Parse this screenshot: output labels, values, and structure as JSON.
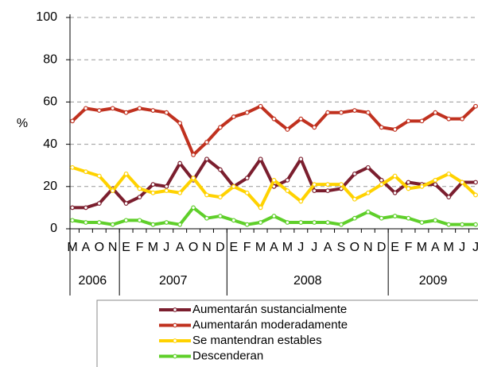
{
  "chart_data": {
    "type": "line",
    "y_label": "%",
    "categories": [
      "M",
      "A",
      "O",
      "N",
      "E",
      "F",
      "M",
      "J",
      "A",
      "O",
      "N",
      "D",
      "E",
      "F",
      "M",
      "A",
      "M",
      "J",
      "J",
      "A",
      "S",
      "O",
      "N",
      "D",
      "E",
      "F",
      "M",
      "A",
      "M",
      "J",
      "J"
    ],
    "years": [
      "2006",
      "2007",
      "2008",
      "2009"
    ],
    "series": [
      {
        "name": "Aumentarán sustancialmente",
        "color": "#7b1e2e",
        "values": [
          10,
          10,
          12,
          19,
          12,
          15,
          21,
          20,
          31,
          23,
          33,
          28,
          20,
          24,
          33,
          20,
          23,
          33,
          18,
          18,
          19,
          26,
          29,
          23,
          17,
          22,
          21,
          21,
          15,
          22,
          22
        ]
      },
      {
        "name": "Aumentarán moderadamente",
        "color": "#c0311f",
        "values": [
          51,
          57,
          56,
          57,
          55,
          57,
          56,
          55,
          50,
          35,
          41,
          48,
          53,
          55,
          58,
          52,
          47,
          52,
          48,
          55,
          55,
          56,
          55,
          48,
          47,
          51,
          51,
          55,
          52,
          52,
          58
        ]
      },
      {
        "name": "Se mantendran estables",
        "color": "#ffd200",
        "values": [
          29,
          27,
          25,
          18,
          26,
          19,
          17,
          18,
          17,
          24,
          16,
          15,
          20,
          17,
          10,
          23,
          18,
          13,
          21,
          21,
          21,
          14,
          17,
          21,
          25,
          19,
          20,
          23,
          26,
          22,
          16
        ]
      },
      {
        "name": "Descenderan",
        "color": "#5fcf2a",
        "values": [
          4,
          3,
          3,
          2,
          4,
          4,
          2,
          3,
          2,
          10,
          5,
          6,
          4,
          2,
          3,
          6,
          3,
          3,
          3,
          3,
          2,
          5,
          8,
          5,
          6,
          5,
          3,
          4,
          2,
          2,
          2
        ]
      }
    ],
    "ylim": [
      0,
      100
    ],
    "yticks": [
      0,
      20,
      40,
      60,
      80,
      100
    ],
    "grid": true,
    "legend": "bottom"
  }
}
